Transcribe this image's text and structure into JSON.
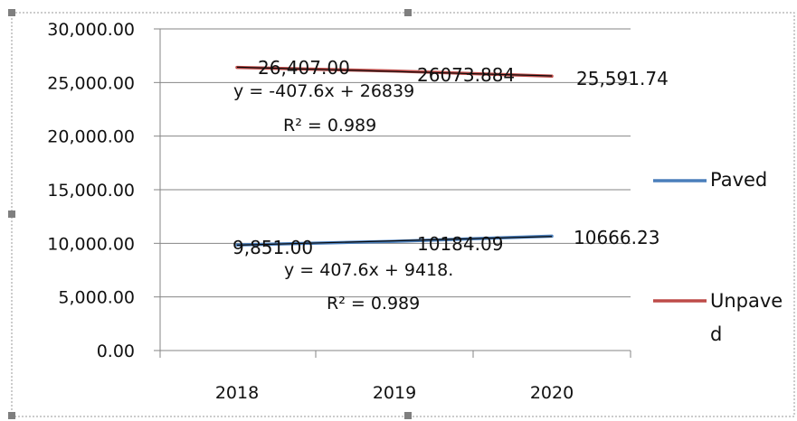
{
  "colors": {
    "paved": "#4a7ebb",
    "unpaved": "#be4b48",
    "trendline": "#0a0a0a",
    "axis": "#868686",
    "grid": "#868686",
    "frame_border": "#999999",
    "handle": "#7f7f7f"
  },
  "chart_data": {
    "type": "line",
    "categories": [
      "2018",
      "2019",
      "2020"
    ],
    "series": [
      {
        "name": "Paved",
        "values": [
          9851.0,
          10184.09,
          10666.23
        ],
        "data_labels": [
          "9,851.00",
          "10184.09",
          "10666.23"
        ],
        "trendline": {
          "equation": "y = 407.6x + 9418.",
          "r_squared": "R² = 0.989"
        }
      },
      {
        "name": "Unpaved",
        "values": [
          26407.0,
          26073.884,
          25591.74
        ],
        "data_labels": [
          "26,407.00",
          "26073.884",
          "25,591.74"
        ],
        "trendline": {
          "equation": "y = -407.6x + 26839",
          "r_squared": "R² = 0.989"
        }
      }
    ],
    "y_ticks": [
      "0.00",
      "5,000.00",
      "10,000.00",
      "15,000.00",
      "20,000.00",
      "25,000.00",
      "30,000.00"
    ],
    "ylim": [
      0,
      30000
    ],
    "grid": true,
    "legend": {
      "position": "right",
      "entries": [
        "Paved",
        "Unpave",
        "d"
      ]
    },
    "title": "",
    "xlabel": "",
    "ylabel": ""
  }
}
